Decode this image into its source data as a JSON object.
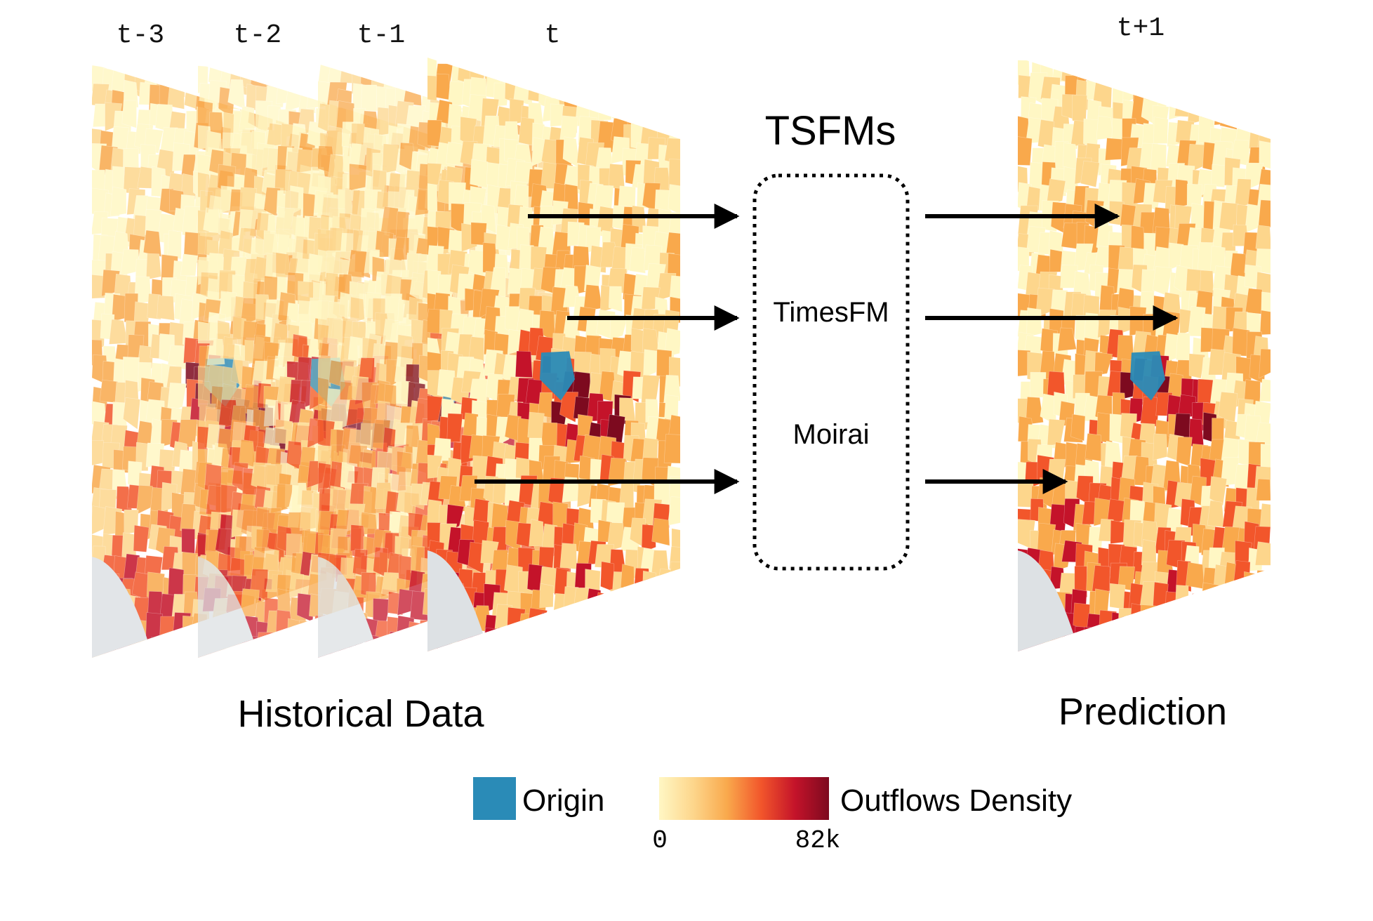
{
  "frames": {
    "history_labels": [
      "t-3",
      "t-2",
      "t-1",
      "t"
    ],
    "prediction_label": "t+1"
  },
  "model_box": {
    "title": "TSFMs",
    "models": [
      "TimesFM",
      "Moirai"
    ]
  },
  "captions": {
    "historical": "Historical Data",
    "prediction": "Prediction"
  },
  "legend": {
    "origin_label": "Origin",
    "density_label": "Outflows Density",
    "scale_min": "0",
    "scale_max": "82k"
  },
  "colors": {
    "origin": "#2a8bb7",
    "gradient": [
      "#fff7c4",
      "#fdd68c",
      "#f9a94c",
      "#f2562b",
      "#c4132a",
      "#7d0a1f"
    ],
    "sea": "#dde1e4"
  }
}
